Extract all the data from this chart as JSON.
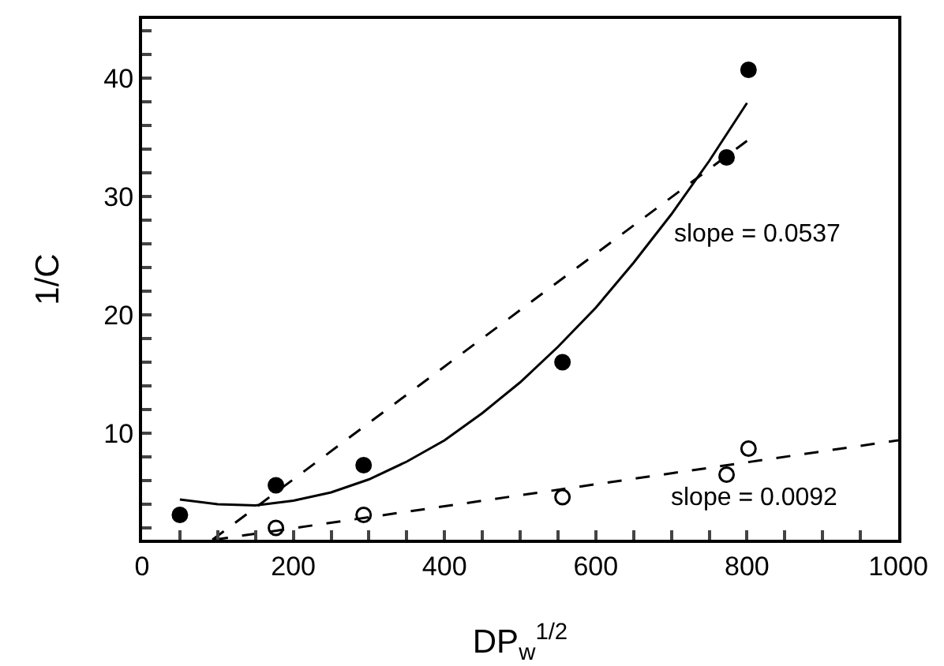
{
  "chart_data": {
    "type": "scatter",
    "xlabel": "DP$_{w}$$^{1/2}$",
    "ylabel": "1/C",
    "xlim": [
      0,
      1000
    ],
    "ylim": [
      1,
      45
    ],
    "xticks": [
      0,
      {
        "value": 50,
        "label": null
      },
      {
        "value": 100,
        "label": null
      },
      {
        "value": 150,
        "label": null
      },
      200,
      {
        "value": 250,
        "label": null
      },
      {
        "value": 300,
        "label": null
      },
      {
        "value": 350,
        "label": null
      },
      400,
      {
        "value": 450,
        "label": null
      },
      {
        "value": 500,
        "label": null
      },
      {
        "value": 550,
        "label": null
      },
      600,
      {
        "value": 650,
        "label": null
      },
      {
        "value": 700,
        "label": null
      },
      {
        "value": 750,
        "label": null
      },
      800,
      {
        "value": 850,
        "label": null
      },
      {
        "value": 900,
        "label": null
      },
      {
        "value": 950,
        "label": null
      },
      1000
    ],
    "yticks": [
      {
        "value": 2,
        "label": null
      },
      {
        "value": 4,
        "label": null
      },
      {
        "value": 6,
        "label": null
      },
      {
        "value": 8,
        "label": null
      },
      10,
      {
        "value": 12,
        "label": null
      },
      {
        "value": 14,
        "label": null
      },
      {
        "value": 16,
        "label": null
      },
      {
        "value": 18,
        "label": null
      },
      20,
      {
        "value": 22,
        "label": null
      },
      {
        "value": 24,
        "label": null
      },
      {
        "value": 26,
        "label": null
      },
      {
        "value": 28,
        "label": null
      },
      30,
      {
        "value": 32,
        "label": null
      },
      {
        "value": 34,
        "label": null
      },
      {
        "value": 36,
        "label": null
      },
      {
        "value": 38,
        "label": null
      },
      40,
      {
        "value": 42,
        "label": null
      },
      {
        "value": 44,
        "label": null
      }
    ],
    "grid": false,
    "series": [
      {
        "marker": "circle",
        "color": "#000000",
        "x": [
          50,
          177,
          293,
          556,
          773,
          802
        ],
        "values": [
          3.1,
          5.6,
          7.3,
          16.0,
          33.3,
          40.7
        ]
      },
      {
        "marker": "circle-open",
        "color": "#000000",
        "x": [
          177,
          293,
          556,
          773,
          802
        ],
        "values": [
          2.0,
          3.1,
          4.6,
          6.5,
          8.7
        ]
      },
      {
        "type": "line",
        "line_style": "solid",
        "color": "#000000",
        "x": [
          50,
          100,
          150,
          200,
          250,
          300,
          350,
          400,
          450,
          500,
          550,
          600,
          650,
          700,
          750,
          800
        ],
        "values": [
          4.4,
          4.0,
          3.9,
          4.3,
          5.0,
          6.1,
          7.6,
          9.4,
          11.7,
          14.3,
          17.3,
          20.6,
          24.4,
          28.5,
          33.0,
          37.9
        ]
      },
      {
        "type": "line",
        "line_style": "dashed",
        "color": "#000000",
        "x": [
          93,
          800
        ],
        "values": [
          1,
          34.7
        ]
      },
      {
        "type": "line",
        "line_style": "dashed",
        "color": "#000000",
        "x": [
          95,
          1000
        ],
        "values": [
          1,
          9.4
        ]
      }
    ],
    "annotations": [
      "slope = 0.0537",
      "slope = 0.0092"
    ]
  }
}
